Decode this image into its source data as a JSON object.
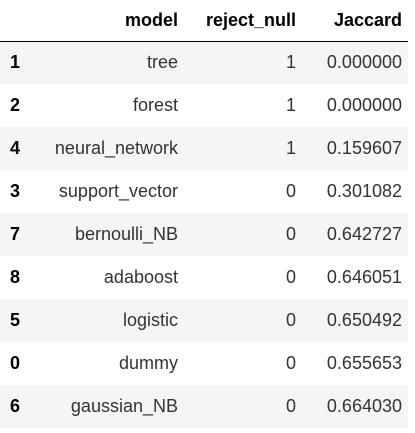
{
  "table": {
    "columns": [
      "",
      "model",
      "reject_null",
      "Jaccard"
    ],
    "rows": [
      {
        "index": "1",
        "model": "tree",
        "reject_null": "1",
        "jaccard": "0.000000"
      },
      {
        "index": "2",
        "model": "forest",
        "reject_null": "1",
        "jaccard": "0.000000"
      },
      {
        "index": "4",
        "model": "neural_network",
        "reject_null": "1",
        "jaccard": "0.159607"
      },
      {
        "index": "3",
        "model": "support_vector",
        "reject_null": "0",
        "jaccard": "0.301082"
      },
      {
        "index": "7",
        "model": "bernoulli_NB",
        "reject_null": "0",
        "jaccard": "0.642727"
      },
      {
        "index": "8",
        "model": "adaboost",
        "reject_null": "0",
        "jaccard": "0.646051"
      },
      {
        "index": "5",
        "model": "logistic",
        "reject_null": "0",
        "jaccard": "0.650492"
      },
      {
        "index": "0",
        "model": "dummy",
        "reject_null": "0",
        "jaccard": "0.655653"
      },
      {
        "index": "6",
        "model": "gaussian_NB",
        "reject_null": "0",
        "jaccard": "0.664030"
      }
    ]
  }
}
